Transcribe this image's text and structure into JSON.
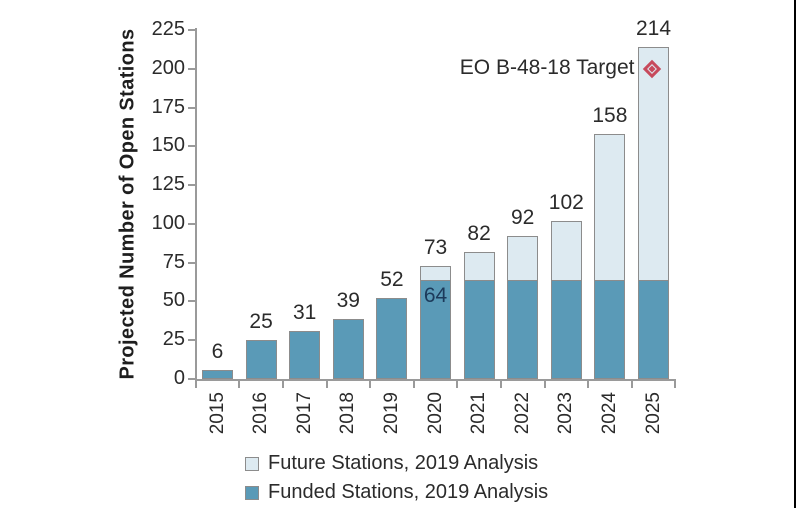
{
  "chart_data": {
    "type": "bar",
    "stacked": true,
    "title": "",
    "xlabel": "",
    "ylabel": "Projected Number of Open Stations",
    "ylim": [
      0,
      225
    ],
    "ytick_step": 25,
    "grid": false,
    "categories": [
      "2015",
      "2016",
      "2017",
      "2018",
      "2019",
      "2020",
      "2021",
      "2022",
      "2023",
      "2024",
      "2025"
    ],
    "series": [
      {
        "name": "Funded Stations, 2019 Analysis",
        "color": "#5a9ab7",
        "values": [
          6,
          25,
          31,
          39,
          52,
          64,
          64,
          64,
          64,
          64,
          64
        ]
      },
      {
        "name": "Future Stations, 2019 Analysis",
        "color": "#ddeaf1",
        "values": [
          0,
          0,
          0,
          0,
          0,
          9,
          18,
          28,
          38,
          94,
          150
        ]
      }
    ],
    "totals": [
      6,
      25,
      31,
      39,
      52,
      73,
      82,
      92,
      102,
      158,
      214
    ],
    "bar_labels": [
      "6",
      "25",
      "31",
      "39",
      "52",
      "73",
      "82",
      "92",
      "102",
      "158",
      "214"
    ],
    "inner_label": {
      "category": "2020",
      "text": "64",
      "color": "#1c3a5a"
    },
    "annotation": {
      "label": "EO B-48-18 Target",
      "category": "2025",
      "value": 200,
      "marker": "diamond",
      "color": "#c74a5c"
    },
    "legend_position": "bottom",
    "legend": [
      {
        "label": "Future Stations, 2019 Analysis",
        "color": "#ddeaf1"
      },
      {
        "label": "Funded Stations, 2019 Analysis",
        "color": "#5a9ab7"
      }
    ],
    "bar_border_color": "#8c8c8c",
    "axis_color": "#9a9a9a",
    "text_color": "#2b2b2b"
  }
}
